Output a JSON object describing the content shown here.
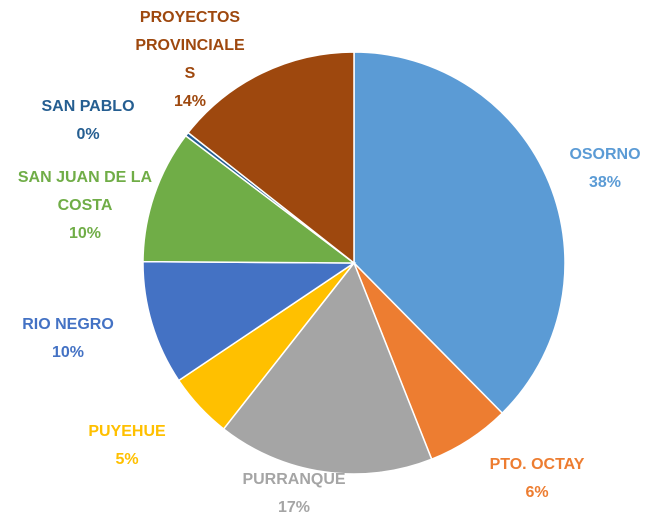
{
  "chart_data": {
    "type": "pie",
    "categories": [
      "OSORNO",
      "PTO. OCTAY",
      "PURRANQUE",
      "PUYEHUE",
      "RIO NEGRO",
      "SAN JUAN DE LA COSTA",
      "SAN PABLO",
      "PROYECTOS PROVINCIALES"
    ],
    "values": [
      37.6,
      6.4,
      16.6,
      5.0,
      9.5,
      10.2,
      0.3,
      14.4
    ],
    "value_labels": [
      "38%",
      "6%",
      "17%",
      "5%",
      "10%",
      "10%",
      "0%",
      "14%"
    ],
    "colors": [
      "#5b9bd5",
      "#ed7d31",
      "#a5a5a5",
      "#ffc000",
      "#4472c4",
      "#70ad47",
      "#255e91",
      "#9e480e"
    ]
  }
}
